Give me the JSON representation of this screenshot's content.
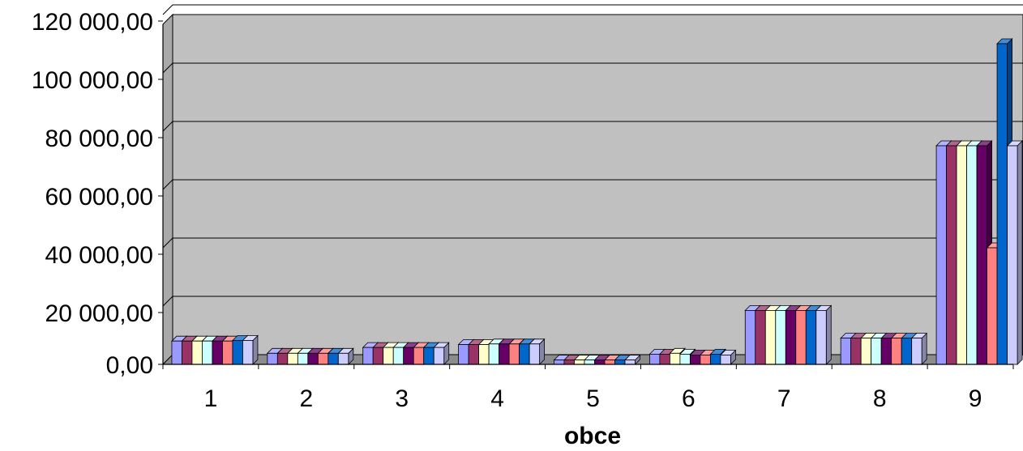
{
  "chart_data": {
    "type": "bar",
    "title": "",
    "xlabel": "obce",
    "ylabel": "",
    "ylim": [
      0,
      120000
    ],
    "yticks": [
      {
        "value": 0,
        "label": "0,00"
      },
      {
        "value": 20000,
        "label": "20 000,00"
      },
      {
        "value": 40000,
        "label": "40 000,00"
      },
      {
        "value": 60000,
        "label": "60 000,00"
      },
      {
        "value": 80000,
        "label": "80 000,00"
      },
      {
        "value": 100000,
        "label": "100 000,00"
      },
      {
        "value": 120000,
        "label": "120 000,00"
      }
    ],
    "categories": [
      "1",
      "2",
      "3",
      "4",
      "5",
      "6",
      "7",
      "8",
      "9"
    ],
    "grid": true,
    "legend": "none",
    "plot_background": "#c0c0c0",
    "series": [
      {
        "color": "#9999ff",
        "values": [
          8000,
          3800,
          5800,
          6800,
          1500,
          3500,
          18500,
          9000,
          75000
        ]
      },
      {
        "color": "#993366",
        "values": [
          8000,
          3800,
          5800,
          6800,
          1500,
          3500,
          18500,
          9000,
          75000
        ]
      },
      {
        "color": "#ffffcc",
        "values": [
          8000,
          3800,
          5800,
          6800,
          1500,
          3800,
          18500,
          9000,
          75000
        ]
      },
      {
        "color": "#ccffff",
        "values": [
          8000,
          3800,
          5800,
          7000,
          1500,
          3500,
          18500,
          9000,
          75000
        ]
      },
      {
        "color": "#660066",
        "values": [
          8000,
          3800,
          5800,
          7000,
          1500,
          3200,
          18500,
          9000,
          75000
        ]
      },
      {
        "color": "#ff8080",
        "values": [
          8000,
          3800,
          5800,
          7000,
          1500,
          3200,
          18500,
          9000,
          40000
        ]
      },
      {
        "color": "#0066cc",
        "values": [
          8200,
          3800,
          5800,
          7000,
          1500,
          3500,
          18500,
          9000,
          110000
        ]
      },
      {
        "color": "#ccccff",
        "values": [
          8200,
          3800,
          5800,
          7000,
          1500,
          3200,
          18500,
          9000,
          75000
        ]
      }
    ]
  }
}
